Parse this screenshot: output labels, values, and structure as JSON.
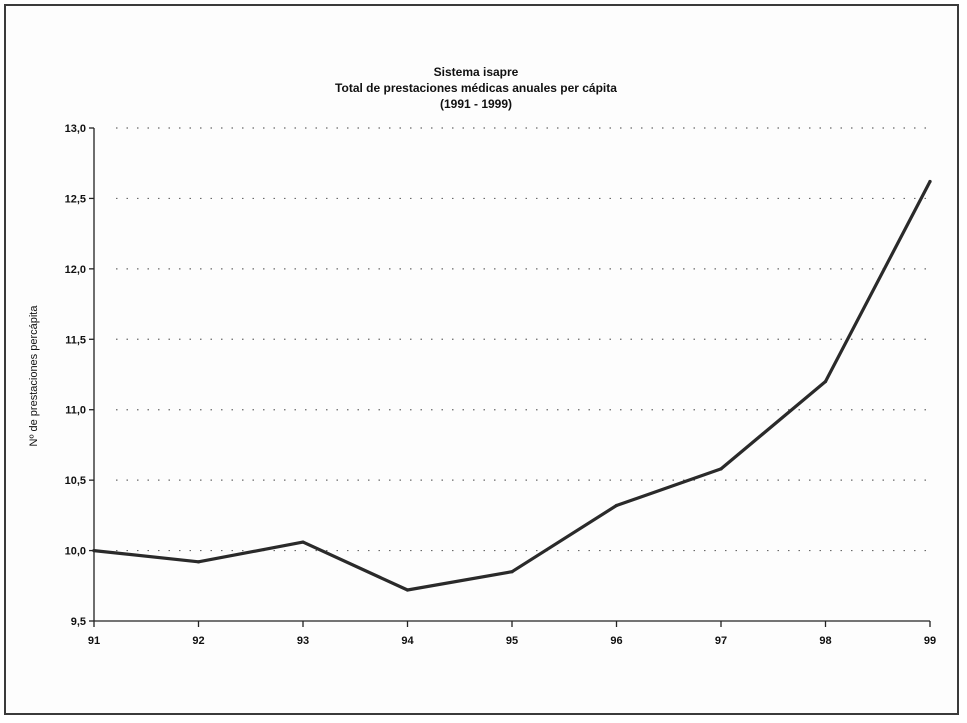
{
  "chart_data": {
    "type": "line",
    "title": "Sistema isapre",
    "subtitle": "Total de prestaciones médicas anuales per cápita",
    "subtitle2": "(1991 - 1999)",
    "xlabel": "",
    "ylabel": "Nº de prestaciones percápita",
    "categories": [
      "91",
      "92",
      "93",
      "94",
      "95",
      "96",
      "97",
      "98",
      "99"
    ],
    "yticks": [
      "9,5",
      "10,0",
      "10,5",
      "11,0",
      "11,5",
      "12,0",
      "12,5",
      "13,0"
    ],
    "ytick_values": [
      9.5,
      10.0,
      10.5,
      11.0,
      11.5,
      12.0,
      12.5,
      13.0
    ],
    "ylim": [
      9.5,
      13.0
    ],
    "grid": true,
    "legend": "none",
    "series": [
      {
        "values": [
          10.0,
          9.92,
          10.06,
          9.72,
          9.85,
          10.32,
          10.58,
          11.2,
          12.62
        ]
      }
    ]
  }
}
